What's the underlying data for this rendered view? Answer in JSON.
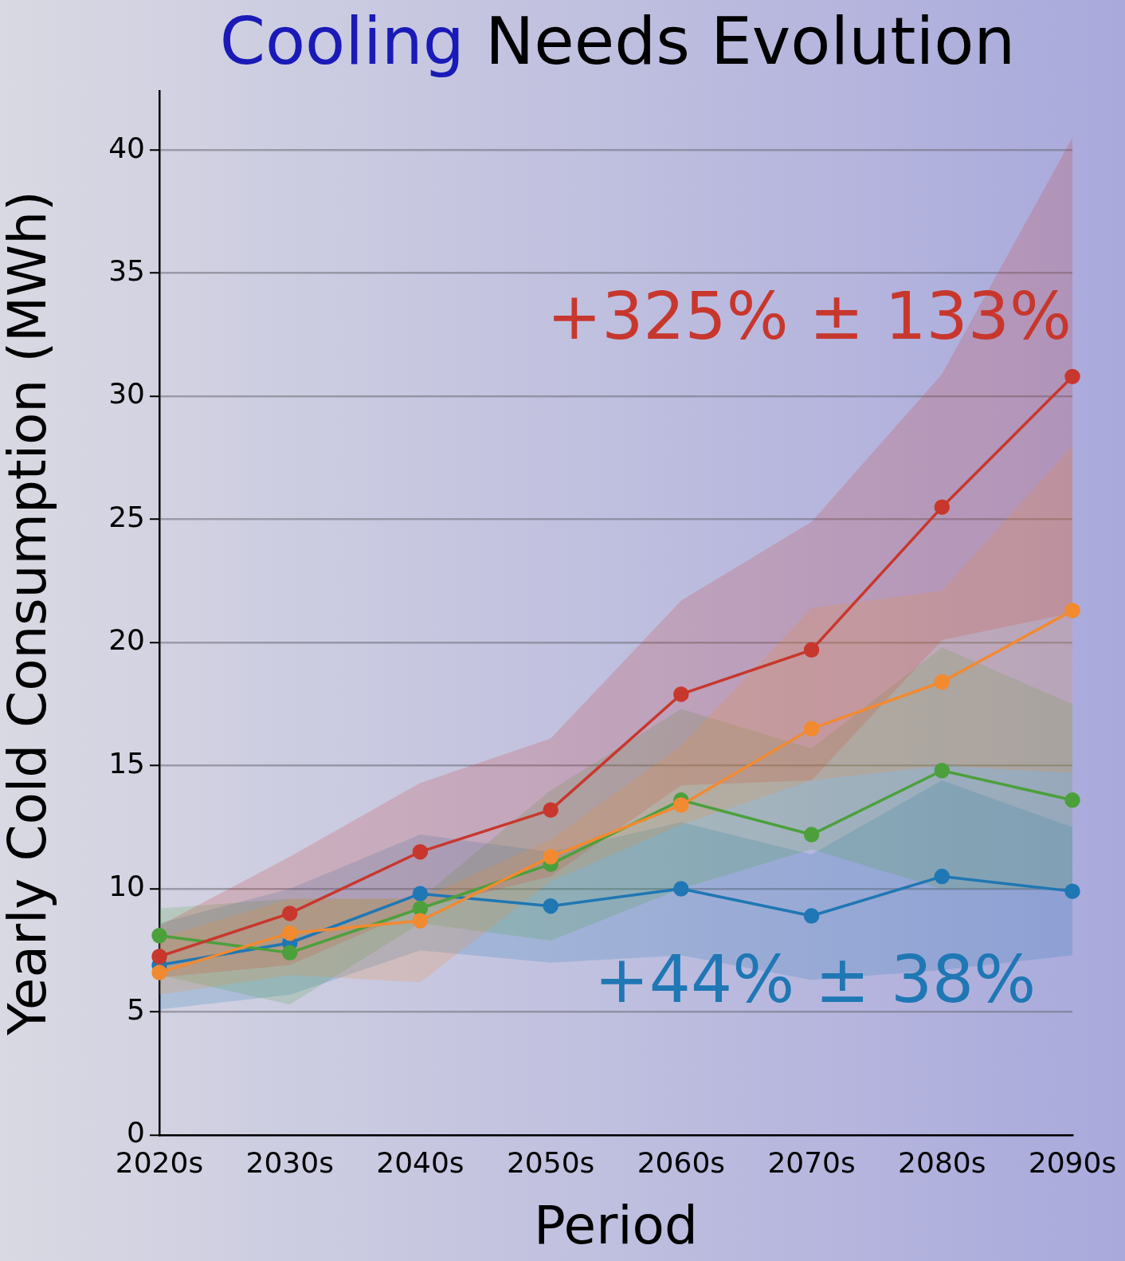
{
  "chart_data": {
    "type": "line",
    "title": "Cooling Needs Evolution",
    "xlabel": "Period",
    "ylabel": "Yearly Cold Consumption (MWh)",
    "categories": [
      "2020s",
      "2030s",
      "2040s",
      "2050s",
      "2060s",
      "2070s",
      "2080s",
      "2090s"
    ],
    "series": [
      {
        "color": "#1f77b4",
        "values": [
          6.9,
          7.8,
          9.8,
          9.3,
          10.0,
          8.9,
          10.5,
          9.9
        ],
        "lower": [
          5.1,
          5.7,
          7.5,
          7.0,
          7.3,
          6.3,
          6.7,
          7.3
        ],
        "upper": [
          8.6,
          10.0,
          12.2,
          11.5,
          12.7,
          11.4,
          14.4,
          12.5
        ]
      },
      {
        "color": "#4ca03c",
        "values": [
          8.1,
          7.4,
          9.2,
          11.0,
          13.6,
          12.2,
          14.8,
          13.6
        ],
        "lower": [
          6.5,
          5.3,
          8.6,
          7.9,
          10.0,
          11.6,
          10.0,
          10.0
        ],
        "upper": [
          9.2,
          9.6,
          9.6,
          14.0,
          17.3,
          15.7,
          19.8,
          17.5
        ]
      },
      {
        "color": "#c8372d",
        "values": [
          7.25,
          9.0,
          11.5,
          13.2,
          17.9,
          19.7,
          25.5,
          30.8
        ],
        "lower": [
          6.4,
          6.9,
          9.2,
          10.5,
          14.2,
          14.4,
          20.1,
          21.2
        ],
        "upper": [
          8.5,
          11.3,
          14.3,
          16.1,
          21.7,
          24.9,
          30.9,
          40.5
        ]
      },
      {
        "color": "#f28a30",
        "values": [
          6.6,
          8.2,
          8.7,
          11.3,
          13.4,
          16.5,
          18.4,
          21.3
        ],
        "lower": [
          5.7,
          6.5,
          6.2,
          10.3,
          12.6,
          14.4,
          15.0,
          14.7
        ],
        "upper": [
          8.0,
          9.6,
          9.6,
          12.0,
          15.8,
          21.4,
          22.1,
          28.0
        ]
      }
    ],
    "ylim": [
      0,
      42.4
    ],
    "yticks": [
      0,
      5,
      10,
      15,
      20,
      25,
      30,
      35,
      40
    ],
    "grid": "y",
    "legend": false,
    "marker": "circle",
    "line_style": "solid",
    "annotations": [
      "+325% ± 133%",
      "+44% ± 38%"
    ]
  }
}
